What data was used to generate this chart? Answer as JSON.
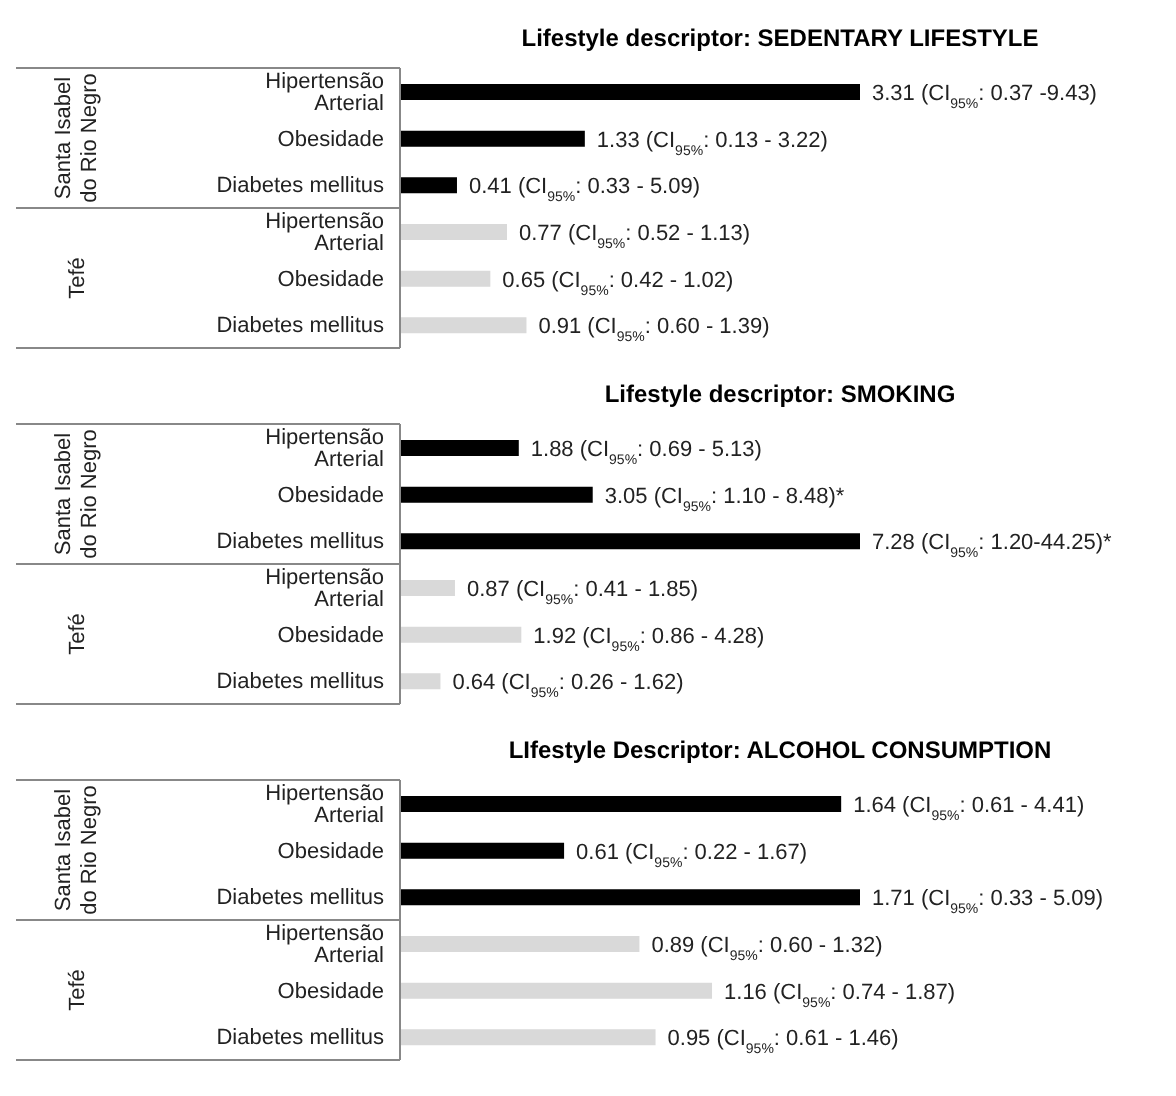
{
  "chart_data": [
    {
      "type": "bar",
      "orientation": "horizontal",
      "title": "Lifestyle descriptor: SEDENTARY LIFESTYLE",
      "categories": [
        "Hipertensão Arterial",
        "Obesidade",
        "Diabetes mellitus",
        "Hipertensão Arterial",
        "Obesidade",
        "Diabetes mellitus"
      ],
      "annotations": [
        "Santa Isabel do Rio Negro",
        "Tefé"
      ],
      "values": [
        3.31,
        1.33,
        0.41,
        0.77,
        0.65,
        0.91
      ],
      "colors": [
        "#000000",
        "#000000",
        "#000000",
        "#d9d9d9",
        "#d9d9d9",
        "#d9d9d9"
      ],
      "value_labels": [
        "3.31 (CI$_{95%}$: 0.37 -9.43)",
        "1.33 (CI$_{95%}$: 0.13 - 3.22)",
        "0.41 (CI$_{95%}$: 0.33 - 5.09)",
        "0.77 (CI$_{95%}$: 0.52 - 1.13)",
        "0.65 (CI$_{95%}$: 0.42 - 1.02)",
        "0.91 (CI$_{95%}$: 0.60 - 1.39)"
      ]
    },
    {
      "type": "bar",
      "orientation": "horizontal",
      "title": "Lifestyle descriptor: SMOKING",
      "categories": [
        "Hipertensão Arterial",
        "Obesidade",
        "Diabetes mellitus",
        "Hipertensão Arterial",
        "Obesidade",
        "Diabetes mellitus"
      ],
      "annotations": [
        "Santa Isabel do Rio Negro",
        "Tefé"
      ],
      "values": [
        1.88,
        3.05,
        7.28,
        0.87,
        1.92,
        0.64
      ],
      "colors": [
        "#000000",
        "#000000",
        "#000000",
        "#d9d9d9",
        "#d9d9d9",
        "#d9d9d9"
      ],
      "value_labels": [
        "1.88 (CI$_{95%}$: 0.69 - 5.13)",
        "3.05 (CI$_{95%}$: 1.10 - 8.48)*",
        "7.28 (CI$_{95%}$: 1.20-44.25)*",
        "0.87 (CI$_{95%}$: 0.41 - 1.85)",
        "1.92 (CI$_{95%}$: 0.86 - 4.28)",
        "0.64 (CI$_{95%}$: 0.26 - 1.62)"
      ]
    },
    {
      "type": "bar",
      "orientation": "horizontal",
      "title": "LIfestyle Descriptor: ALCOHOL CONSUMPTION",
      "categories": [
        "Hipertensão Arterial",
        "Obesidade",
        "Diabetes mellitus",
        "Hipertensão Arterial",
        "Obesidade",
        "Diabetes mellitus"
      ],
      "annotations": [
        "Santa Isabel do Rio Negro",
        "Tefé"
      ],
      "values": [
        1.64,
        0.61,
        1.71,
        0.89,
        1.16,
        0.95
      ],
      "colors": [
        "#000000",
        "#000000",
        "#000000",
        "#d9d9d9",
        "#d9d9d9",
        "#d9d9d9"
      ],
      "value_labels": [
        "1.64 (CI$_{95%}$: 0.61 - 4.41)",
        "0.61 (CI$_{95%}$: 0.22 - 1.67)",
        "1.71 (CI$_{95%}$: 0.33 - 5.09)",
        "0.89 (CI$_{95%}$: 0.60 - 1.32)",
        "1.16 (CI$_{95%}$: 0.74 - 1.87)",
        "0.95 (CI$_{95%}$: 0.61 - 1.46)"
      ]
    }
  ]
}
